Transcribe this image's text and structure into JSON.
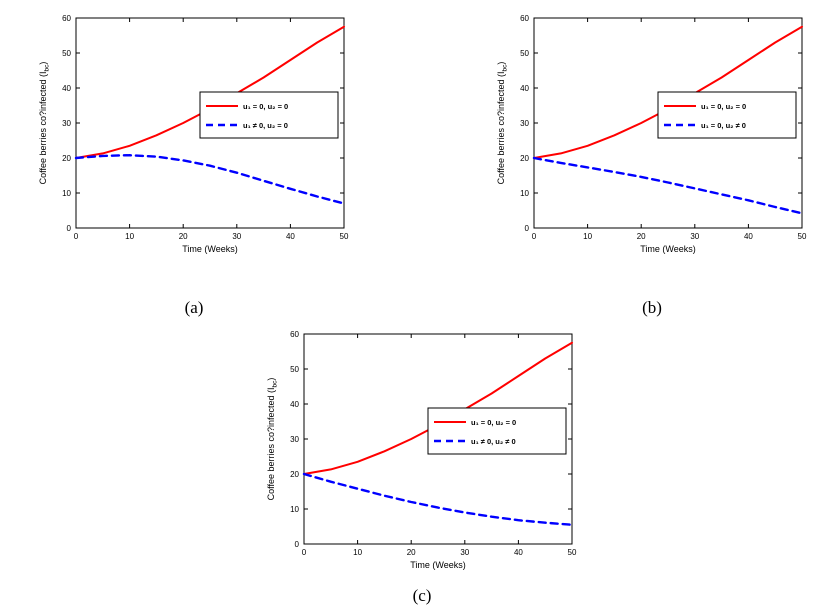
{
  "page": {
    "background": "#ffffff",
    "captions": [
      "(a)",
      "(b)",
      "(c)"
    ]
  },
  "colors": {
    "no_control": "#ff0000",
    "with_control": "#0000ff",
    "axis": "#000000"
  },
  "chart_data": [
    {
      "id": "a",
      "type": "line",
      "caption": "(a)",
      "title": "",
      "xlabel": "Time (Weeks)",
      "ylabel_main": "Coffee berries co?infected (I",
      "ylabel_sub": "bc",
      "ylabel_close": ")",
      "xlim": [
        0,
        50
      ],
      "ylim": [
        0,
        60
      ],
      "xticks": [
        0,
        10,
        20,
        30,
        40,
        50
      ],
      "yticks": [
        0,
        10,
        20,
        30,
        40,
        50,
        60
      ],
      "grid": false,
      "legend_position": "middle-right",
      "series": [
        {
          "name": "u₁ = 0, u₂ = 0",
          "color": "#ff0000",
          "style": "solid",
          "x": [
            0,
            5,
            10,
            15,
            20,
            25,
            30,
            35,
            40,
            45,
            50
          ],
          "y": [
            20,
            21.3,
            23.5,
            26.5,
            30,
            34,
            38.5,
            43,
            48,
            53,
            57.5
          ]
        },
        {
          "name": "u₁ ≠ 0, u₂ = 0",
          "color": "#0000ff",
          "style": "dashed",
          "x": [
            0,
            5,
            10,
            15,
            20,
            25,
            30,
            35,
            40,
            45,
            50
          ],
          "y": [
            20,
            20.6,
            20.8,
            20.4,
            19.3,
            17.8,
            15.8,
            13.5,
            11.2,
            9,
            7
          ]
        }
      ]
    },
    {
      "id": "b",
      "type": "line",
      "caption": "(b)",
      "title": "",
      "xlabel": "Time (Weeks)",
      "ylabel_main": "Coffee berries co?infected (I",
      "ylabel_sub": "bc",
      "ylabel_close": ")",
      "xlim": [
        0,
        50
      ],
      "ylim": [
        0,
        60
      ],
      "xticks": [
        0,
        10,
        20,
        30,
        40,
        50
      ],
      "yticks": [
        0,
        10,
        20,
        30,
        40,
        50,
        60
      ],
      "grid": false,
      "legend_position": "middle-right",
      "series": [
        {
          "name": "u₁ = 0, u₂ = 0",
          "color": "#ff0000",
          "style": "solid",
          "x": [
            0,
            5,
            10,
            15,
            20,
            25,
            30,
            35,
            40,
            45,
            50
          ],
          "y": [
            20,
            21.3,
            23.5,
            26.5,
            30,
            34,
            38.5,
            43,
            48,
            53,
            57.5
          ]
        },
        {
          "name": "u₁ = 0, u₂ ≠ 0",
          "color": "#0000ff",
          "style": "dashed",
          "x": [
            0,
            5,
            10,
            15,
            20,
            25,
            30,
            35,
            40,
            45,
            50
          ],
          "y": [
            20,
            18.6,
            17.3,
            16,
            14.6,
            13,
            11.3,
            9.6,
            7.9,
            6,
            4.2
          ]
        }
      ]
    },
    {
      "id": "c",
      "type": "line",
      "caption": "(c)",
      "title": "",
      "xlabel": "Time (Weeks)",
      "ylabel_main": "Coffee berries co?infected (I",
      "ylabel_sub": "bc",
      "ylabel_close": ")",
      "xlim": [
        0,
        50
      ],
      "ylim": [
        0,
        60
      ],
      "xticks": [
        0,
        10,
        20,
        30,
        40,
        50
      ],
      "yticks": [
        0,
        10,
        20,
        30,
        40,
        50,
        60
      ],
      "grid": false,
      "legend_position": "middle-right",
      "series": [
        {
          "name": "u₁ = 0, u₂ = 0",
          "color": "#ff0000",
          "style": "solid",
          "x": [
            0,
            5,
            10,
            15,
            20,
            25,
            30,
            35,
            40,
            45,
            50
          ],
          "y": [
            20,
            21.3,
            23.5,
            26.5,
            30,
            34,
            38.5,
            43,
            48,
            53,
            57.5
          ]
        },
        {
          "name": "u₁ ≠ 0, u₂ ≠ 0",
          "color": "#0000ff",
          "style": "dashed",
          "x": [
            0,
            5,
            10,
            15,
            20,
            25,
            30,
            35,
            40,
            45,
            50
          ],
          "y": [
            20,
            17.8,
            15.8,
            13.8,
            12,
            10.4,
            9,
            7.8,
            6.8,
            6.1,
            5.5
          ]
        }
      ]
    }
  ]
}
